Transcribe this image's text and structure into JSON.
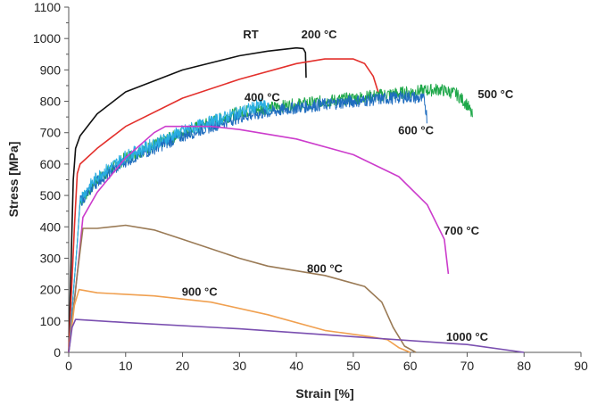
{
  "chart_data": {
    "type": "line",
    "title": "",
    "xlabel": "Strain [%]",
    "ylabel": "Stress [MPa]",
    "xlim": [
      0,
      90
    ],
    "ylim": [
      0,
      1100
    ],
    "xticks": [
      0,
      10,
      20,
      30,
      40,
      50,
      60,
      70,
      80,
      90
    ],
    "yticks": [
      0,
      100,
      200,
      300,
      400,
      500,
      600,
      700,
      800,
      900,
      1000,
      1100
    ],
    "grid": false,
    "legend": "none (curves labeled inline)",
    "series": [
      {
        "name": "RT",
        "color": "#111111",
        "noisy": false,
        "x": [
          0,
          0.8,
          1.2,
          2,
          5,
          10,
          20,
          30,
          35,
          40,
          41.2,
          41.6,
          41.7
        ],
        "y": [
          0,
          550,
          650,
          690,
          760,
          830,
          900,
          945,
          960,
          970,
          968,
          955,
          875
        ]
      },
      {
        "name": "200 °C",
        "color": "#e3302c",
        "noisy": false,
        "x": [
          0,
          1,
          1.5,
          2,
          5,
          10,
          20,
          30,
          40,
          45,
          50,
          52,
          53.5,
          54.7
        ],
        "y": [
          0,
          400,
          570,
          600,
          650,
          720,
          810,
          870,
          920,
          935,
          935,
          920,
          880,
          810
        ]
      },
      {
        "name": "400 °C",
        "color": "#1fa84a",
        "noisy": true,
        "x": [
          0,
          1.5,
          2,
          5,
          10,
          20,
          30,
          40,
          50,
          60,
          65,
          68,
          70,
          71
        ],
        "y": [
          0,
          350,
          480,
          550,
          620,
          700,
          765,
          790,
          810,
          830,
          838,
          825,
          790,
          750
        ]
      },
      {
        "name": "500 °C",
        "color": "#1f6dbf",
        "noisy": true,
        "x": [
          0,
          1.5,
          2,
          5,
          10,
          20,
          30,
          40,
          50,
          60,
          62.5,
          63
        ],
        "y": [
          0,
          350,
          480,
          545,
          610,
          690,
          750,
          780,
          800,
          815,
          805,
          740
        ]
      },
      {
        "name": "600 °C",
        "color": "#2aaee2",
        "noisy": true,
        "x": [
          0,
          1.5,
          2,
          5,
          10,
          20,
          30,
          34,
          35.5
        ],
        "y": [
          0,
          350,
          490,
          560,
          625,
          705,
          765,
          790,
          770
        ]
      },
      {
        "name": "700 °C",
        "color": "#cc3ccc",
        "noisy": false,
        "x": [
          0,
          1.5,
          2.5,
          5,
          10,
          15,
          17,
          25,
          30,
          40,
          50,
          58,
          63,
          66,
          66.7
        ],
        "y": [
          0,
          250,
          430,
          510,
          620,
          700,
          720,
          720,
          710,
          680,
          630,
          560,
          470,
          360,
          250
        ]
      },
      {
        "name": "800 °C",
        "color": "#9a7a55",
        "noisy": false,
        "x": [
          0,
          1.5,
          2.5,
          3.5,
          5,
          10,
          15,
          20,
          30,
          35,
          45,
          52,
          55,
          57,
          59,
          61
        ],
        "y": [
          0,
          250,
          395,
          395,
          395,
          405,
          390,
          360,
          300,
          275,
          245,
          210,
          160,
          80,
          20,
          0
        ]
      },
      {
        "name": "900 °C",
        "color": "#f0a050",
        "noisy": false,
        "x": [
          0,
          1,
          1.8,
          5,
          15,
          25,
          35,
          45,
          53,
          56,
          58,
          60
        ],
        "y": [
          0,
          150,
          200,
          190,
          180,
          160,
          120,
          70,
          50,
          40,
          15,
          0
        ]
      },
      {
        "name": "1000 °C",
        "color": "#7a4fb0",
        "noisy": false,
        "x": [
          0,
          0.6,
          1.2,
          10,
          30,
          50,
          70,
          80
        ],
        "y": [
          0,
          80,
          105,
          95,
          75,
          50,
          25,
          0
        ]
      }
    ]
  }
}
